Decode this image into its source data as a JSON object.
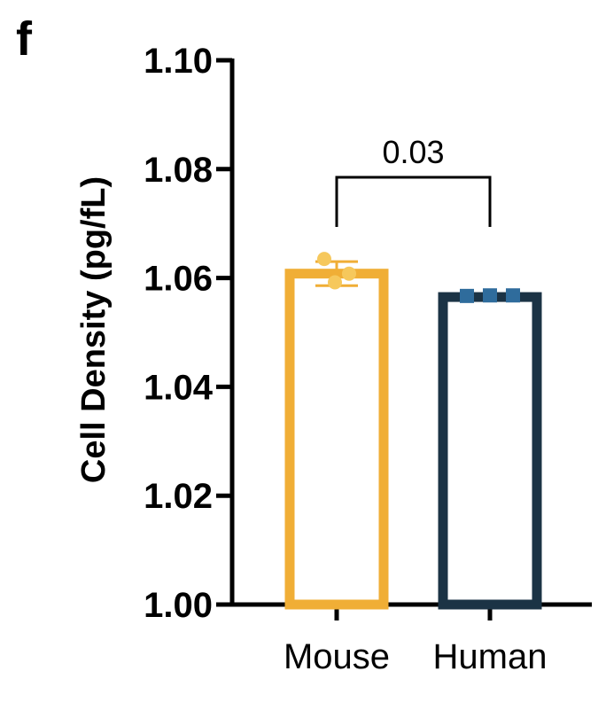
{
  "panel_letter": "f",
  "chart_data": {
    "type": "bar",
    "title": "",
    "xlabel": "",
    "ylabel": "Cell Density (pg/fL)",
    "ylim": [
      1.0,
      1.1
    ],
    "yticks": [
      "1.00",
      "1.02",
      "1.04",
      "1.06",
      "1.08",
      "1.10"
    ],
    "categories": [
      "Mouse",
      "Human"
    ],
    "values": [
      1.0608,
      1.0565
    ],
    "errors": [
      0.0022,
      0.0005
    ],
    "points": [
      [
        1.0635,
        1.0608,
        1.0592
      ],
      [
        1.0567,
        1.0568,
        1.0568
      ]
    ],
    "colors": [
      "#f0ae36",
      "#1b3345"
    ],
    "point_colors": [
      "#f6c85c",
      "#2f6c9c"
    ],
    "grid": false,
    "legend": "none",
    "annotations": [
      {
        "type": "bracket",
        "from": "Mouse",
        "to": "Human",
        "text": "0.03"
      }
    ]
  }
}
